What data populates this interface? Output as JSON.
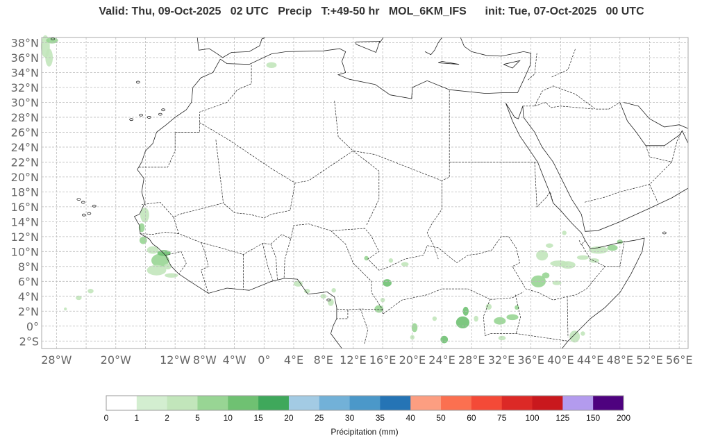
{
  "title": "Valid: Thu, 09-Oct-2025   02 UTC   Precip   T:+49-50 hr   MOL_6KM_IFS      init: Tue, 07-Oct-2025   00 UTC",
  "map": {
    "extent": {
      "lon": [
        -30,
        57.2
      ],
      "lat": [
        -3,
        38.7
      ]
    },
    "lon_ticks": [
      {
        "lon": -28,
        "label": "28°W"
      },
      {
        "lon": -20,
        "label": "20°W"
      },
      {
        "lon": -12,
        "label": "12°W"
      },
      {
        "lon": -8,
        "label": "8°W"
      },
      {
        "lon": -4,
        "label": "4°W"
      },
      {
        "lon": 0,
        "label": "0°"
      },
      {
        "lon": 4,
        "label": "4°E"
      },
      {
        "lon": 8,
        "label": "8°E"
      },
      {
        "lon": 12,
        "label": "12°E"
      },
      {
        "lon": 16,
        "label": "16°E"
      },
      {
        "lon": 20,
        "label": "20°E"
      },
      {
        "lon": 24,
        "label": "24°E"
      },
      {
        "lon": 28,
        "label": "28°E"
      },
      {
        "lon": 32,
        "label": "32°E"
      },
      {
        "lon": 36,
        "label": "36°E"
      },
      {
        "lon": 40,
        "label": "40°E"
      },
      {
        "lon": 44,
        "label": "44°E"
      },
      {
        "lon": 48,
        "label": "48°E"
      },
      {
        "lon": 52,
        "label": "52°E"
      },
      {
        "lon": 56,
        "label": "56°E"
      }
    ],
    "lat_ticks": [
      {
        "lat": 38,
        "label": "38°N"
      },
      {
        "lat": 36,
        "label": "36°N"
      },
      {
        "lat": 34,
        "label": "34°N"
      },
      {
        "lat": 32,
        "label": "32°N"
      },
      {
        "lat": 30,
        "label": "30°N"
      },
      {
        "lat": 28,
        "label": "28°N"
      },
      {
        "lat": 26,
        "label": "26°N"
      },
      {
        "lat": 24,
        "label": "24°N"
      },
      {
        "lat": 22,
        "label": "22°N"
      },
      {
        "lat": 20,
        "label": "20°N"
      },
      {
        "lat": 18,
        "label": "18°N"
      },
      {
        "lat": 16,
        "label": "16°N"
      },
      {
        "lat": 14,
        "label": "14°N"
      },
      {
        "lat": 12,
        "label": "12°N"
      },
      {
        "lat": 10,
        "label": "10°N"
      },
      {
        "lat": 8,
        "label": "8°N"
      },
      {
        "lat": 6,
        "label": "6°N"
      },
      {
        "lat": 4,
        "label": "4°N"
      },
      {
        "lat": 2,
        "label": "2°N"
      },
      {
        "lat": 0,
        "label": "0°"
      },
      {
        "lat": -2,
        "label": "2°S"
      }
    ]
  },
  "colorbar": {
    "label": "Précipitation (mm)",
    "bounds": [
      "0",
      "1",
      "2",
      "5",
      "10",
      "15",
      "20",
      "25",
      "30",
      "35",
      "40",
      "50",
      "60",
      "75",
      "100",
      "125",
      "150",
      "200"
    ],
    "colors": [
      "#ffffff",
      "#d3eed0",
      "#c2e6bb",
      "#98d594",
      "#6fc172",
      "#3fa85b",
      "#a3cbe4",
      "#72b1d8",
      "#4b98c9",
      "#2574b5",
      "#fc9e81",
      "#fb7050",
      "#f44a37",
      "#dc2926",
      "#c9181d",
      "#b39bee",
      "#4e027f"
    ]
  }
}
